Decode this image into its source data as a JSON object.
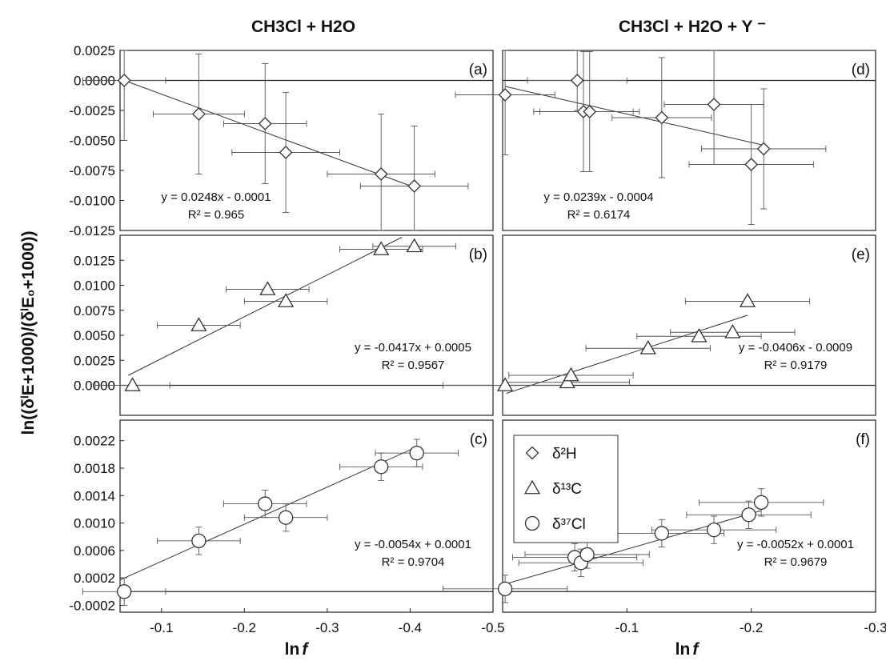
{
  "figure": {
    "y_axis_title": "ln((δⁱE+1000)/(δⁱE₀+1000))",
    "columns": [
      {
        "title": "CH3Cl + H2O",
        "x_axis_title_main": "ln",
        "x_axis_title_var": "f",
        "x_tick_labels": [
          "-0.1",
          "-0.2",
          "-0.3",
          "-0.4",
          "-0.5"
        ]
      },
      {
        "title": "CH3Cl + H2O + Y ⁻",
        "x_axis_title_main": "ln",
        "x_axis_title_var": "f",
        "x_tick_labels": [
          "-0.1",
          "-0.2",
          "-0.3"
        ]
      }
    ],
    "legend": [
      {
        "marker": "diamond",
        "label": "δ²H"
      },
      {
        "marker": "triangle",
        "label": "δ¹³C"
      },
      {
        "marker": "circle",
        "label": "δ³⁷Cl"
      }
    ]
  },
  "chart_data": [
    {
      "type": "scatter",
      "panel": "(a)",
      "column": 0,
      "row": 0,
      "marker": "diamond",
      "xlim": [
        -0.05,
        -0.5
      ],
      "ylim": [
        -0.0125,
        0.0025
      ],
      "y_tick_labels": [
        "0.0025",
        "0.0000",
        "-0.0025",
        "-0.0050",
        "-0.0075",
        "-0.0100",
        "-0.0125"
      ],
      "x": [
        -0.055,
        -0.145,
        -0.225,
        -0.25,
        -0.365,
        -0.405
      ],
      "y": [
        0.0,
        -0.0028,
        -0.0036,
        -0.006,
        -0.0078,
        -0.0088
      ],
      "xerr": [
        0.05,
        0.055,
        0.05,
        0.065,
        0.065,
        0.065
      ],
      "yerr": [
        0.005,
        0.005,
        0.005,
        0.005,
        0.005,
        0.005
      ],
      "equation": "y = 0.0248x - 0.0001",
      "r2": "R² = 0.965",
      "trend": {
        "x": [
          -0.055,
          -0.405
        ],
        "y": [
          0.0,
          -0.0089
        ]
      }
    },
    {
      "type": "scatter",
      "panel": "(b)",
      "column": 0,
      "row": 1,
      "marker": "triangle",
      "xlim": [
        -0.05,
        -0.5
      ],
      "ylim": [
        -0.003,
        0.015
      ],
      "y_tick_labels": [
        "0.0125",
        "0.0100",
        "0.0075",
        "0.0050",
        "0.0025",
        "0.0000"
      ],
      "x": [
        -0.065,
        -0.145,
        -0.228,
        -0.25,
        -0.365,
        -0.405
      ],
      "y": [
        0.0,
        0.006,
        0.0096,
        0.0084,
        0.0136,
        0.0139
      ],
      "xerr": [
        0.045,
        0.05,
        0.05,
        0.05,
        0.05,
        0.05
      ],
      "yerr": [
        0,
        0,
        0,
        0,
        0,
        0
      ],
      "equation": "y = -0.0417x + 0.0005",
      "r2": "R² = 0.9567",
      "trend": {
        "x": [
          -0.06,
          -0.39
        ],
        "y": [
          0.001,
          0.0148
        ]
      }
    },
    {
      "type": "scatter",
      "panel": "(c)",
      "column": 0,
      "row": 2,
      "marker": "circle",
      "xlim": [
        -0.05,
        -0.5
      ],
      "ylim": [
        -0.0003,
        0.0025
      ],
      "y_tick_labels": [
        "0.0022",
        "0.0018",
        "0.0014",
        "0.0010",
        "0.0006",
        "0.0002",
        "-0.0002"
      ],
      "x": [
        -0.055,
        -0.145,
        -0.225,
        -0.25,
        -0.365,
        -0.408
      ],
      "y": [
        0.0,
        0.00074,
        0.00128,
        0.00108,
        0.00182,
        0.00202
      ],
      "xerr": [
        0.05,
        0.05,
        0.05,
        0.05,
        0.05,
        0.05
      ],
      "yerr": [
        0.0002,
        0.0002,
        0.0002,
        0.0002,
        0.0002,
        0.0002
      ],
      "equation": "y = -0.0054x + 0.0001",
      "r2": "R² = 0.9704",
      "trend": {
        "x": [
          -0.05,
          -0.41
        ],
        "y": [
          0.00017,
          0.00212
        ]
      }
    },
    {
      "type": "scatter",
      "panel": "(d)",
      "column": 1,
      "row": 0,
      "marker": "diamond",
      "xlim": [
        0.0,
        -0.3
      ],
      "ylim": [
        -0.0125,
        0.0025
      ],
      "y_tick_labels": [],
      "x": [
        -0.002,
        -0.06,
        -0.065,
        -0.07,
        -0.128,
        -0.17,
        -0.2,
        -0.21
      ],
      "y": [
        -0.0012,
        0.0,
        -0.0026,
        -0.0026,
        -0.0031,
        -0.002,
        -0.007,
        -0.0057
      ],
      "xerr": [
        0.04,
        0.04,
        0.04,
        0.04,
        0.04,
        0.04,
        0.05,
        0.05
      ],
      "yerr": [
        0.005,
        0.0025,
        0.005,
        0.005,
        0.005,
        0.005,
        0.005,
        0.005
      ],
      "equation": "y = 0.0239x - 0.0004",
      "r2": "R² = 0.6174",
      "trend": {
        "x": [
          -0.002,
          -0.21
        ],
        "y": [
          -0.0005,
          -0.0054
        ]
      }
    },
    {
      "type": "scatter",
      "panel": "(e)",
      "column": 1,
      "row": 1,
      "marker": "triangle",
      "xlim": [
        0.0,
        -0.3
      ],
      "ylim": [
        -0.003,
        0.015
      ],
      "y_tick_labels": [],
      "x": [
        -0.002,
        -0.052,
        -0.055,
        -0.117,
        -0.158,
        -0.185,
        -0.197
      ],
      "y": [
        0.0,
        0.0003,
        0.001,
        0.0037,
        0.0049,
        0.0053,
        0.0084
      ],
      "xerr": [
        0.05,
        0.05,
        0.05,
        0.05,
        0.05,
        0.05,
        0.05
      ],
      "yerr": [
        0,
        0,
        0,
        0,
        0,
        0,
        0
      ],
      "equation": "y = -0.0406x - 0.0009",
      "r2": "R² = 0.9179",
      "trend": {
        "x": [
          -0.003,
          -0.197
        ],
        "y": [
          -0.0008,
          0.007
        ]
      }
    },
    {
      "type": "scatter",
      "panel": "(f)",
      "column": 1,
      "row": 2,
      "marker": "circle",
      "xlim": [
        0.0,
        -0.3
      ],
      "ylim": [
        -0.0003,
        0.0025
      ],
      "y_tick_labels": [],
      "x": [
        -0.002,
        -0.058,
        -0.063,
        -0.068,
        -0.128,
        -0.17,
        -0.198,
        -0.208
      ],
      "y": [
        4e-05,
        0.0005,
        0.00042,
        0.00054,
        0.00085,
        0.0009,
        0.00112,
        0.0013
      ],
      "xerr": [
        0.05,
        0.05,
        0.05,
        0.05,
        0.05,
        0.05,
        0.05,
        0.05
      ],
      "yerr": [
        0.0002,
        0.0002,
        0.0002,
        0.0002,
        0.0002,
        0.0002,
        0.0002,
        0.0002
      ],
      "equation": "y = -0.0052x + 0.0001",
      "r2": "R² = 0.9679",
      "trend": {
        "x": [
          -0.002,
          -0.208
        ],
        "y": [
          0.00011,
          0.00118
        ]
      }
    }
  ]
}
